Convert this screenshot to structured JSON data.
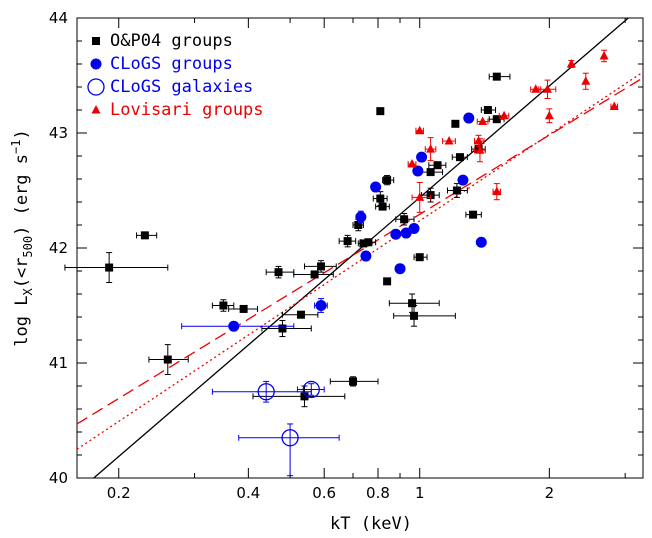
{
  "chart_data": {
    "type": "scatter",
    "title": "",
    "xlabel": "kT (keV)",
    "ylabel_parts": {
      "prefix": "log L",
      "sub_x": "X",
      "mid": "(<r",
      "sub_r": "500",
      "suffix": ") (erg s",
      "sup": "−1",
      "end": ")"
    },
    "x_scale": "log",
    "xlim": [
      0.16,
      3.3
    ],
    "ylim": [
      40,
      44
    ],
    "x_tick_labels": [
      {
        "v": 0.2,
        "label": "0.2"
      },
      {
        "v": 0.4,
        "label": "0.4"
      },
      {
        "v": 0.6,
        "label": "0.6"
      },
      {
        "v": 0.8,
        "label": "0.8"
      },
      {
        "v": 1,
        "label": "1"
      },
      {
        "v": 2,
        "label": "2"
      }
    ],
    "x_minor_ticks": [
      0.3,
      0.5,
      0.7,
      0.9,
      3
    ],
    "y_tick_labels": [
      {
        "v": 40,
        "label": "40"
      },
      {
        "v": 41,
        "label": "41"
      },
      {
        "v": 42,
        "label": "42"
      },
      {
        "v": 43,
        "label": "43"
      },
      {
        "v": 44,
        "label": "44"
      }
    ],
    "legend_position": "top-left",
    "legend": [
      {
        "label": "O&P04 groups",
        "marker": "square",
        "color": "#000000"
      },
      {
        "label": "CLoGS groups",
        "marker": "filled-circle",
        "color": "#0000ee"
      },
      {
        "label": "CLoGS galaxies",
        "marker": "open-circle",
        "color": "#0000ee"
      },
      {
        "label": "Lovisari groups",
        "marker": "triangle",
        "color": "#ee0000"
      }
    ],
    "series": [
      {
        "name": "O&P04 groups",
        "marker": "square",
        "color": "#000000",
        "points": [
          {
            "x": 0.19,
            "y": 41.83,
            "xerr": [
              0.15,
              0.26
            ],
            "yerr": [
              41.7,
              41.96
            ]
          },
          {
            "x": 0.23,
            "y": 42.11,
            "xerr": [
              0.22,
              0.245
            ]
          },
          {
            "x": 0.26,
            "y": 41.03,
            "xerr": [
              0.235,
              0.29
            ],
            "yerr": [
              40.9,
              41.16
            ]
          },
          {
            "x": 0.35,
            "y": 41.5,
            "xerr": [
              0.33,
              0.37
            ],
            "yerr": [
              41.45,
              41.55
            ]
          },
          {
            "x": 0.39,
            "y": 41.47,
            "xerr": [
              0.36,
              0.42
            ]
          },
          {
            "x": 0.47,
            "y": 41.79,
            "xerr": [
              0.44,
              0.51
            ],
            "yerr": [
              41.74,
              41.84
            ]
          },
          {
            "x": 0.48,
            "y": 41.3,
            "xerr": [
              0.43,
              0.56
            ],
            "yerr": [
              41.23,
              41.37
            ]
          },
          {
            "x": 0.53,
            "y": 41.42,
            "xerr": [
              0.48,
              0.58
            ]
          },
          {
            "x": 0.57,
            "y": 41.77,
            "xerr": [
              0.51,
              0.63
            ]
          },
          {
            "x": 0.59,
            "y": 41.84,
            "xerr": [
              0.54,
              0.64
            ],
            "yerr": [
              41.79,
              41.89
            ]
          },
          {
            "x": 0.54,
            "y": 40.71,
            "xerr": [
              0.41,
              0.67
            ],
            "yerr": [
              40.62,
              40.8
            ]
          },
          {
            "x": 0.7,
            "y": 40.84,
            "xerr": [
              0.62,
              0.8
            ],
            "yerr": [
              40.8,
              40.88
            ]
          },
          {
            "x": 0.68,
            "y": 42.06,
            "xerr": [
              0.65,
              0.71
            ],
            "yerr": [
              42.01,
              42.11
            ]
          },
          {
            "x": 0.72,
            "y": 42.2,
            "xerr": [
              0.7,
              0.74
            ],
            "yerr": [
              42.15,
              42.25
            ]
          },
          {
            "x": 0.74,
            "y": 42.04,
            "xerr": [
              0.72,
              0.76
            ]
          },
          {
            "x": 0.76,
            "y": 42.05,
            "xerr": [
              0.73,
              0.79
            ]
          },
          {
            "x": 0.81,
            "y": 42.43,
            "xerr": [
              0.78,
              0.84
            ],
            "yerr": [
              42.37,
              42.49
            ]
          },
          {
            "x": 0.82,
            "y": 42.36,
            "xerr": [
              0.79,
              0.85
            ]
          },
          {
            "x": 0.81,
            "y": 43.19
          },
          {
            "x": 0.84,
            "y": 42.59,
            "xerr": [
              0.82,
              0.87
            ],
            "yerr": [
              42.55,
              42.63
            ]
          },
          {
            "x": 0.84,
            "y": 41.71
          },
          {
            "x": 0.92,
            "y": 42.25,
            "xerr": [
              0.88,
              0.97
            ],
            "yerr": [
              42.2,
              42.3
            ]
          },
          {
            "x": 0.96,
            "y": 41.52,
            "xerr": [
              0.85,
              1.11
            ],
            "yerr": [
              41.44,
              41.6
            ]
          },
          {
            "x": 0.97,
            "y": 41.41,
            "xerr": [
              0.87,
              1.21
            ],
            "yerr": [
              41.32,
              41.5
            ]
          },
          {
            "x": 1.0,
            "y": 41.92,
            "xerr": [
              0.97,
              1.04
            ]
          },
          {
            "x": 1.06,
            "y": 42.46,
            "xerr": [
              1.01,
              1.11
            ],
            "yerr": [
              42.4,
              42.52
            ]
          },
          {
            "x": 1.06,
            "y": 42.66,
            "xerr": [
              1.0,
              1.13
            ]
          },
          {
            "x": 1.1,
            "y": 42.72,
            "xerr": [
              1.05,
              1.15
            ]
          },
          {
            "x": 1.22,
            "y": 42.5,
            "xerr": [
              1.16,
              1.29
            ],
            "yerr": [
              42.44,
              42.56
            ]
          },
          {
            "x": 1.24,
            "y": 42.79,
            "xerr": [
              1.19,
              1.29
            ]
          },
          {
            "x": 1.21,
            "y": 43.08
          },
          {
            "x": 1.33,
            "y": 42.29,
            "xerr": [
              1.28,
              1.39
            ]
          },
          {
            "x": 1.37,
            "y": 42.86,
            "xerr": [
              1.32,
              1.42
            ]
          },
          {
            "x": 1.44,
            "y": 43.2,
            "xerr": [
              1.39,
              1.5
            ]
          },
          {
            "x": 1.51,
            "y": 43.12,
            "xerr": [
              1.45,
              1.57
            ]
          },
          {
            "x": 1.51,
            "y": 43.49,
            "xerr": [
              1.45,
              1.62
            ]
          }
        ]
      },
      {
        "name": "CLoGS groups",
        "marker": "filled-circle",
        "color": "#0000ee",
        "points": [
          {
            "x": 0.37,
            "y": 41.32,
            "xerr": [
              0.28,
              0.51
            ]
          },
          {
            "x": 0.59,
            "y": 41.5,
            "xerr": [
              0.57,
              0.61
            ],
            "yerr": [
              41.44,
              41.56
            ]
          },
          {
            "x": 0.73,
            "y": 42.27,
            "yerr": [
              42.22,
              42.32
            ]
          },
          {
            "x": 0.75,
            "y": 41.93
          },
          {
            "x": 0.79,
            "y": 42.53
          },
          {
            "x": 0.88,
            "y": 42.12
          },
          {
            "x": 0.9,
            "y": 41.82
          },
          {
            "x": 0.93,
            "y": 42.13
          },
          {
            "x": 0.97,
            "y": 42.17
          },
          {
            "x": 0.99,
            "y": 42.67
          },
          {
            "x": 1.01,
            "y": 42.79
          },
          {
            "x": 1.26,
            "y": 42.59
          },
          {
            "x": 1.3,
            "y": 43.13
          },
          {
            "x": 1.39,
            "y": 42.05
          }
        ]
      },
      {
        "name": "CLoGS galaxies",
        "marker": "open-circle",
        "color": "#0000ee",
        "points": [
          {
            "x": 0.44,
            "y": 40.75,
            "xerr": [
              0.33,
              0.56
            ],
            "yerr": [
              40.66,
              40.84
            ]
          },
          {
            "x": 0.5,
            "y": 40.35,
            "xerr": [
              0.38,
              0.65
            ],
            "yerr": [
              40.02,
              40.47
            ]
          },
          {
            "x": 0.56,
            "y": 40.77,
            "xerr": [
              0.52,
              0.6
            ],
            "yerr": [
              40.72,
              40.82
            ]
          }
        ]
      },
      {
        "name": "Lovisari groups",
        "marker": "triangle",
        "color": "#ee0000",
        "points": [
          {
            "x": 0.96,
            "y": 42.73,
            "xerr": [
              0.94,
              0.98
            ]
          },
          {
            "x": 1.0,
            "y": 43.02,
            "xerr": [
              0.98,
              1.02
            ]
          },
          {
            "x": 1.0,
            "y": 42.44,
            "xerr": [
              0.96,
              1.06
            ],
            "yerr": [
              42.31,
              42.57
            ]
          },
          {
            "x": 1.06,
            "y": 42.86,
            "xerr": [
              1.03,
              1.09
            ],
            "yerr": [
              42.76,
              42.96
            ]
          },
          {
            "x": 1.17,
            "y": 42.93,
            "xerr": [
              1.13,
              1.21
            ]
          },
          {
            "x": 1.37,
            "y": 42.93,
            "xerr": [
              1.34,
              1.41
            ],
            "yerr": [
              42.88,
              42.98
            ]
          },
          {
            "x": 1.38,
            "y": 42.85,
            "xerr": [
              1.34,
              1.42
            ],
            "yerr": [
              42.75,
              42.95
            ]
          },
          {
            "x": 1.4,
            "y": 43.1,
            "xerr": [
              1.36,
              1.44
            ]
          },
          {
            "x": 1.51,
            "y": 42.49,
            "xerr": [
              1.48,
              1.54
            ],
            "yerr": [
              42.42,
              42.56
            ]
          },
          {
            "x": 1.57,
            "y": 43.15,
            "xerr": [
              1.53,
              1.61
            ]
          },
          {
            "x": 1.86,
            "y": 43.38,
            "xerr": [
              1.81,
              1.91
            ]
          },
          {
            "x": 1.98,
            "y": 43.38,
            "xerr": [
              1.89,
              2.07
            ],
            "yerr": [
              43.3,
              43.46
            ]
          },
          {
            "x": 2.0,
            "y": 43.15,
            "yerr": [
              43.09,
              43.21
            ]
          },
          {
            "x": 2.25,
            "y": 43.6,
            "yerr": [
              43.57,
              43.63
            ]
          },
          {
            "x": 2.43,
            "y": 43.45,
            "yerr": [
              43.38,
              43.52
            ]
          },
          {
            "x": 2.68,
            "y": 43.67,
            "yerr": [
              43.62,
              43.72
            ]
          },
          {
            "x": 2.83,
            "y": 43.23,
            "xerr": [
              2.78,
              2.88
            ]
          }
        ]
      }
    ],
    "fit_lines": [
      {
        "style": "solid",
        "color": "#000000",
        "x": [
          0.175,
          3.05
        ],
        "y": [
          40.0,
          44.0
        ]
      },
      {
        "style": "dashed",
        "color": "#ee0000",
        "x": [
          0.16,
          3.3
        ],
        "y": [
          40.47,
          43.48
        ]
      },
      {
        "style": "dotted",
        "color": "#ee0000",
        "x": [
          0.16,
          3.3
        ],
        "y": [
          40.25,
          43.53
        ]
      }
    ]
  }
}
